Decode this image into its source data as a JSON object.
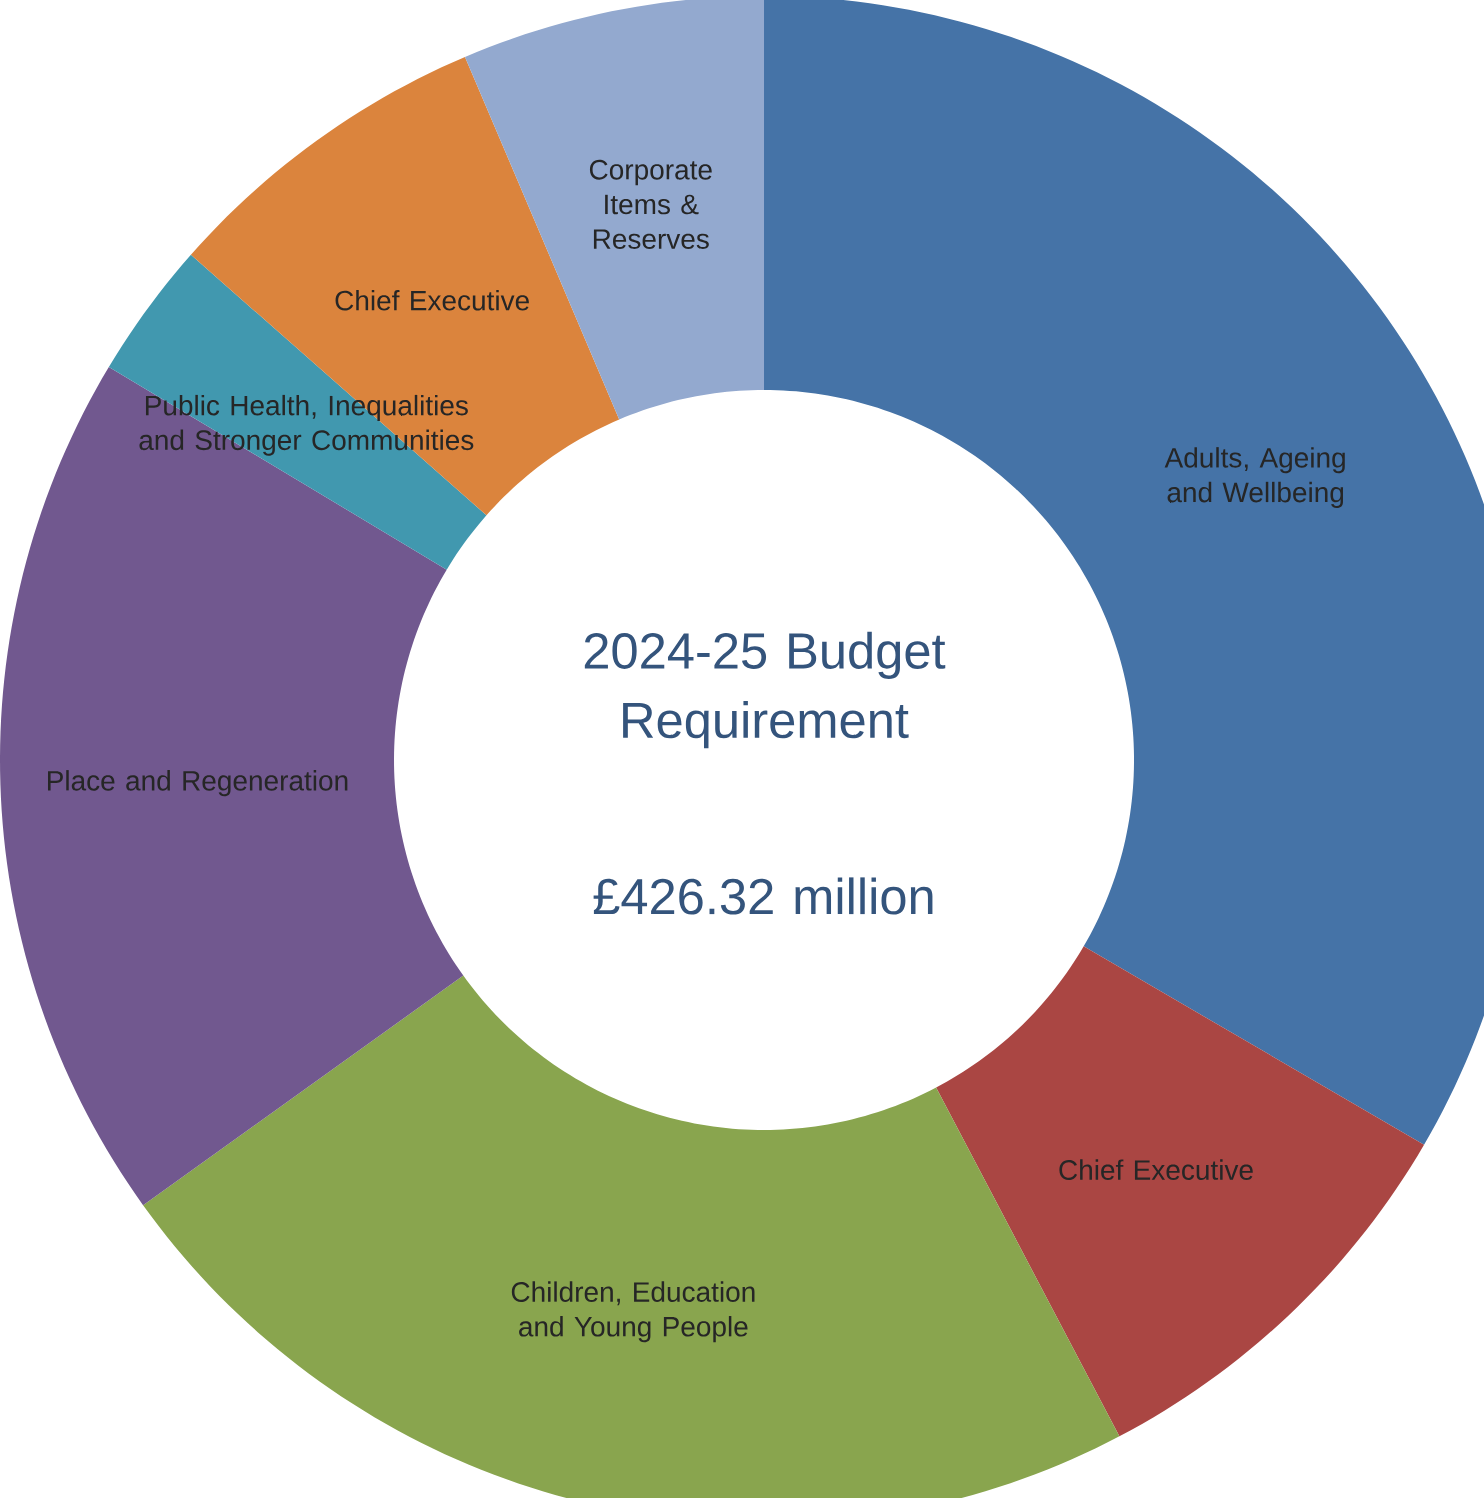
{
  "chart_data": {
    "type": "donut",
    "title": "2024-25 Budget Requirement",
    "subtitle": "£426.32 million",
    "categories": [
      "Adults, Ageing and Wellbeing",
      "Chief Executive",
      "Children, Education and Young People",
      "Place and Regeneration",
      "Public Health, Inequalities and Stronger Communities",
      "Chief Executive",
      "Corporate Items & Reserves"
    ],
    "values": [
      33.4,
      8.9,
      22.8,
      18.5,
      2.9,
      7.1,
      6.4
    ],
    "colors": [
      "#4573A7",
      "#AA4643",
      "#89A54E",
      "#71588F",
      "#4198AF",
      "#DB843D",
      "#93A9CF"
    ]
  }
}
